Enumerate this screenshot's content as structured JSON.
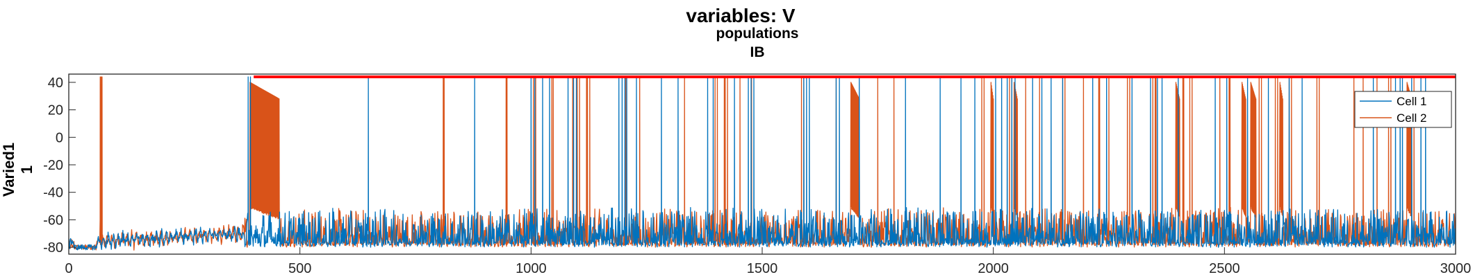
{
  "chart_data": {
    "type": "line",
    "title": "variables: V",
    "subtitle_lines": [
      "populations",
      "IB"
    ],
    "ylabel_lines": [
      "Varied1",
      "1"
    ],
    "xlabel": "",
    "xlim": [
      0,
      3000
    ],
    "ylim": [
      -85,
      46
    ],
    "xticks": [
      0,
      500,
      1000,
      1500,
      2000,
      2500,
      3000
    ],
    "yticks": [
      40,
      20,
      0,
      -20,
      -40,
      -60,
      -80
    ],
    "grid": false,
    "legend_position": "top-right",
    "threshold_line": {
      "y": 44,
      "x_start": 400,
      "x_end": 3000,
      "color": "#ff0000"
    },
    "series": [
      {
        "name": "Cell 1",
        "color": "#0072bd",
        "spikes": [
          388,
          393,
          648,
          878,
          1000,
          1008,
          1025,
          1040,
          1080,
          1092,
          1098,
          1190,
          1197,
          1203,
          1207,
          1228,
          1282,
          1318,
          1382,
          1394,
          1440,
          1470,
          1476,
          1482,
          1590,
          1596,
          1602,
          1660,
          1667,
          1710,
          1810,
          1885,
          1930,
          1960,
          2005,
          2018,
          2030,
          2040,
          2047,
          2085,
          2105,
          2125,
          2150,
          2215,
          2245,
          2300,
          2340,
          2355,
          2365,
          2400,
          2480,
          2505,
          2550,
          2595,
          2640,
          2668,
          2822,
          2870,
          2880,
          2885,
          2905,
          2925,
          2935
        ]
      },
      {
        "name": "Cell 2",
        "color": "#d95319",
        "spikes": [
          68,
          70,
          72,
          810,
          812,
          946,
          948,
          1005,
          1010,
          1045,
          1048,
          1090,
          1100,
          1105,
          1120,
          1122,
          1127,
          1205,
          1235,
          1332,
          1398,
          1403,
          1418,
          1420,
          1425,
          1452,
          1477,
          1585,
          1590,
          1660,
          1705,
          1710,
          1750,
          1785,
          1975,
          1980,
          2035,
          2040,
          2070,
          2100,
          2150,
          2155,
          2195,
          2228,
          2230,
          2250,
          2290,
          2295,
          2345,
          2350,
          2352,
          2400,
          2402,
          2410,
          2412,
          2425,
          2430,
          2490,
          2510,
          2512,
          2560,
          2575,
          2580,
          2610,
          2615,
          2640,
          2645,
          2700,
          2705,
          2780,
          2800,
          2830,
          2855,
          2860,
          2895,
          2900,
          2910
        ],
        "bursts": [
          {
            "start": 392,
            "end": 455
          },
          {
            "start": 1692,
            "end": 1710
          },
          {
            "start": 1995,
            "end": 2000
          },
          {
            "start": 2045,
            "end": 2052
          },
          {
            "start": 2395,
            "end": 2403
          },
          {
            "start": 2538,
            "end": 2546
          },
          {
            "start": 2557,
            "end": 2568
          },
          {
            "start": 2620,
            "end": 2626
          },
          {
            "start": 2895,
            "end": 2905
          }
        ]
      }
    ]
  }
}
